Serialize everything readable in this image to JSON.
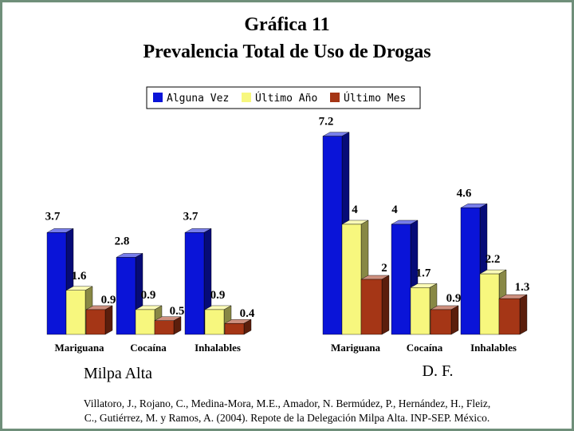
{
  "title_line1": "Gráfica 11",
  "title_line2": "Prevalencia Total de Uso de Drogas",
  "source_line1": "Villatoro, J., Rojano, C., Medina-Mora, M.E., Amador, N. Bermúdez, P., Hernández, H., Fleiz,",
  "source_line2": "C., Gutiérrez, M. y Ramos, A. (2004). Repote de la Delegación Milpa Alta. INP-SEP. México.",
  "colors": {
    "alguna_vez": "#0a14d8",
    "ultimo_anio": "#f7f77e",
    "ultimo_mes": "#a53616",
    "frame": "#6f8f7a"
  },
  "chart_data": [
    {
      "type": "bar",
      "panel_label": "Milpa Alta",
      "categories": [
        "Mariguana",
        "Cocaína",
        "Inhalables"
      ],
      "series": [
        {
          "name": "Alguna Vez",
          "values": [
            3.7,
            2.8,
            3.7
          ],
          "labels": [
            "3.7",
            "2.8",
            "3.7"
          ]
        },
        {
          "name": "Último Año",
          "values": [
            1.6,
            0.9,
            0.9
          ],
          "labels": [
            "1.6",
            "0.9",
            "0.9"
          ]
        },
        {
          "name": "Último Mes",
          "values": [
            0.9,
            0.5,
            0.4
          ],
          "labels": [
            "0.9",
            "0.5",
            "0.4"
          ]
        }
      ],
      "ylim": [
        0,
        7.2
      ],
      "grid": false,
      "legend": "top"
    },
    {
      "type": "bar",
      "panel_label": "D. F.",
      "categories": [
        "Mariguana",
        "Cocaína",
        "Inhalables"
      ],
      "series": [
        {
          "name": "Alguna Vez",
          "values": [
            7.2,
            4,
            4.6
          ],
          "labels": [
            "7.2",
            "4",
            "4.6"
          ]
        },
        {
          "name": "Último Año",
          "values": [
            4,
            1.7,
            2.2
          ],
          "labels": [
            "4",
            "1.7",
            "2.2"
          ]
        },
        {
          "name": "Último Mes",
          "values": [
            2,
            0.9,
            1.3
          ],
          "labels": [
            "2",
            "0.9",
            "1.3"
          ]
        }
      ],
      "ylim": [
        0,
        7.2
      ],
      "grid": false,
      "legend": "top"
    }
  ]
}
